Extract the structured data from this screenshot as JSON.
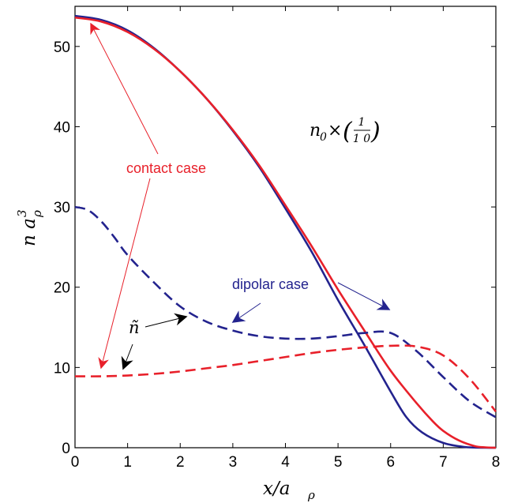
{
  "chart_data": {
    "type": "line",
    "title": "",
    "xlabel": "x/a",
    "xlabel_sub": "ρ",
    "ylabel_base": "n a",
    "ylabel_sup": "3",
    "ylabel_sub": "ρ",
    "xlim": [
      0,
      8
    ],
    "ylim": [
      0,
      55
    ],
    "xticks": [
      0,
      1,
      2,
      3,
      4,
      5,
      6,
      7,
      8
    ],
    "yticks": [
      0,
      10,
      20,
      30,
      40,
      50
    ],
    "grid": false,
    "legend": "none",
    "colors": {
      "contact": "#e8202a",
      "dipolar": "#23238e",
      "arrow": "#000000"
    },
    "series": [
      {
        "style": "solid",
        "color_key": "dipolar",
        "x": [
          0,
          0.5,
          1,
          1.5,
          2,
          2.5,
          3,
          3.5,
          4,
          4.5,
          5,
          5.5,
          6,
          6.3,
          6.6,
          7.0,
          7.4,
          7.8,
          8.0
        ],
        "y": [
          53.8,
          53.3,
          52.0,
          49.8,
          46.9,
          43.5,
          39.5,
          35.0,
          29.8,
          24.4,
          18.4,
          12.8,
          7.0,
          3.8,
          1.9,
          0.6,
          0.1,
          0.0,
          0.0
        ]
      },
      {
        "style": "solid",
        "color_key": "contact",
        "x": [
          0,
          0.5,
          1,
          1.5,
          2,
          2.5,
          3,
          3.5,
          4,
          4.5,
          5,
          5.5,
          6,
          6.5,
          6.8,
          7.0,
          7.3,
          7.6,
          7.8,
          8.0
        ],
        "y": [
          53.6,
          53.1,
          51.8,
          49.7,
          46.9,
          43.5,
          39.6,
          35.2,
          30.2,
          25.1,
          19.7,
          14.6,
          9.6,
          5.5,
          3.3,
          2.1,
          0.9,
          0.2,
          0.05,
          0.0
        ]
      },
      {
        "style": "dashed",
        "color_key": "dipolar",
        "x": [
          0,
          0.25,
          0.5,
          0.75,
          1,
          1.5,
          2,
          2.5,
          3,
          3.5,
          4,
          4.5,
          5,
          5.5,
          6,
          6.5,
          7,
          7.5,
          8
        ],
        "y": [
          30.0,
          29.6,
          28.2,
          26.2,
          24.0,
          20.6,
          17.6,
          15.7,
          14.6,
          13.9,
          13.6,
          13.6,
          13.9,
          14.3,
          14.3,
          12.0,
          8.8,
          5.8,
          3.8
        ]
      },
      {
        "style": "dashed",
        "color_key": "contact",
        "x": [
          0,
          0.5,
          1,
          1.5,
          2,
          2.5,
          3,
          3.5,
          4,
          4.5,
          5,
          5.5,
          6,
          6.5,
          7,
          7.5,
          8
        ],
        "y": [
          8.9,
          8.9,
          9.0,
          9.2,
          9.5,
          9.9,
          10.3,
          10.8,
          11.3,
          11.8,
          12.2,
          12.5,
          12.7,
          12.6,
          11.5,
          8.6,
          4.5
        ]
      }
    ],
    "annotations": {
      "contact_label": "contact case",
      "dipolar_label": "dipolar case",
      "tilde_n": "ñ",
      "n0_base": "n",
      "n0_sub": "0",
      "n0_times": "×",
      "n0_frac_num": "1",
      "n0_frac_den": "1 0",
      "n0_lparen": "(",
      "n0_rparen": ")"
    }
  }
}
